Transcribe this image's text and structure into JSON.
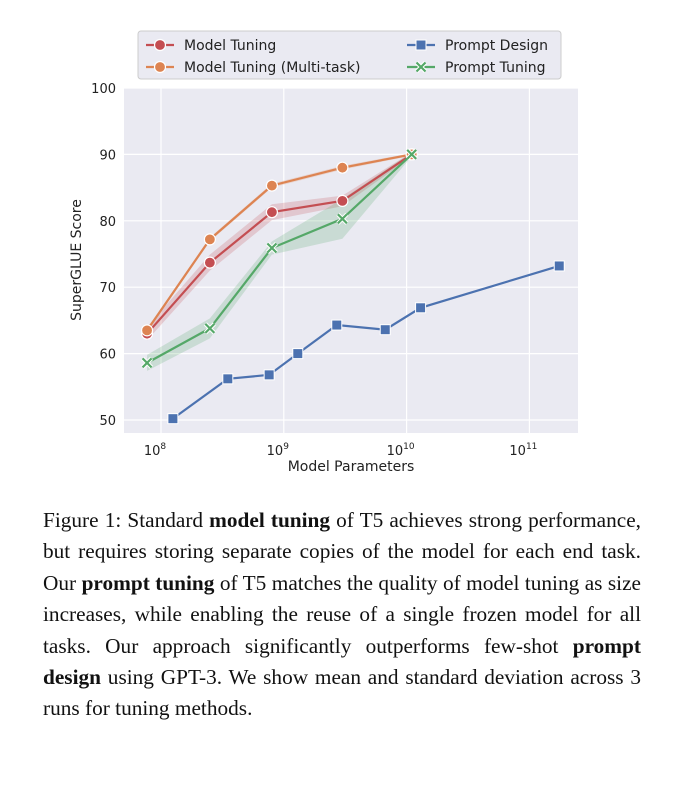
{
  "chart_data": {
    "type": "line",
    "xscale": "log",
    "xlabel": "Model Parameters",
    "ylabel": "SuperGLUE Score",
    "ylim": [
      50,
      100
    ],
    "yticks": [
      50,
      60,
      70,
      80,
      90,
      100
    ],
    "xticks": [
      {
        "base": "10",
        "exp": "8",
        "value": 100000000
      },
      {
        "base": "10",
        "exp": "9",
        "value": 1000000000
      },
      {
        "base": "10",
        "exp": "10",
        "value": 10000000000
      },
      {
        "base": "10",
        "exp": "11",
        "value": 100000000000
      }
    ],
    "grid": true,
    "legend_position": "top",
    "series": [
      {
        "name": "Model Tuning",
        "color": "#c44e52",
        "marker": "circle",
        "x": [
          77000000,
          250000000,
          800000000,
          3000000000,
          11000000000
        ],
        "y": [
          63.0,
          73.7,
          81.3,
          83.0,
          90.0
        ],
        "band": [
          1.0,
          1.2,
          1.2,
          0.8,
          0.3
        ]
      },
      {
        "name": "Model Tuning (Multi-task)",
        "color": "#dd8452",
        "marker": "circle",
        "x": [
          77000000,
          250000000,
          800000000,
          3000000000,
          11000000000
        ],
        "y": [
          63.5,
          77.2,
          85.3,
          88.0,
          90.0
        ],
        "band": [
          0.3,
          0.3,
          0.3,
          0.3,
          0.2
        ]
      },
      {
        "name": "Prompt Design",
        "color": "#4c72b0",
        "marker": "square",
        "x": [
          125000000,
          350000000,
          760000000,
          1300000000,
          2700000000,
          6700000000,
          13000000000,
          175000000000
        ],
        "y": [
          50.2,
          56.2,
          56.8,
          60.0,
          64.3,
          63.6,
          66.9,
          73.2
        ]
      },
      {
        "name": "Prompt Tuning",
        "color": "#55a868",
        "marker": "x",
        "x": [
          77000000,
          250000000,
          800000000,
          3000000000,
          11000000000
        ],
        "y": [
          58.6,
          63.8,
          75.9,
          80.3,
          90.0
        ],
        "band": [
          1.2,
          1.5,
          1.0,
          3.0,
          0.3
        ]
      }
    ]
  },
  "caption": {
    "label": "Figure 1:",
    "t1": " Standard ",
    "b1": "model tuning",
    "t2": " of T5 achieves strong performance, but requires storing separate copies of the model for each end task.  Our ",
    "b2": "prompt tuning",
    "t3": " of T5 matches the quality of model tuning as size increases, while enabling the reuse of a single frozen model for all tasks. Our approach significantly outperforms few-shot ",
    "b3": "prompt design",
    "t4": " using GPT-3. We show mean and standard deviation across 3 runs for tuning methods."
  }
}
